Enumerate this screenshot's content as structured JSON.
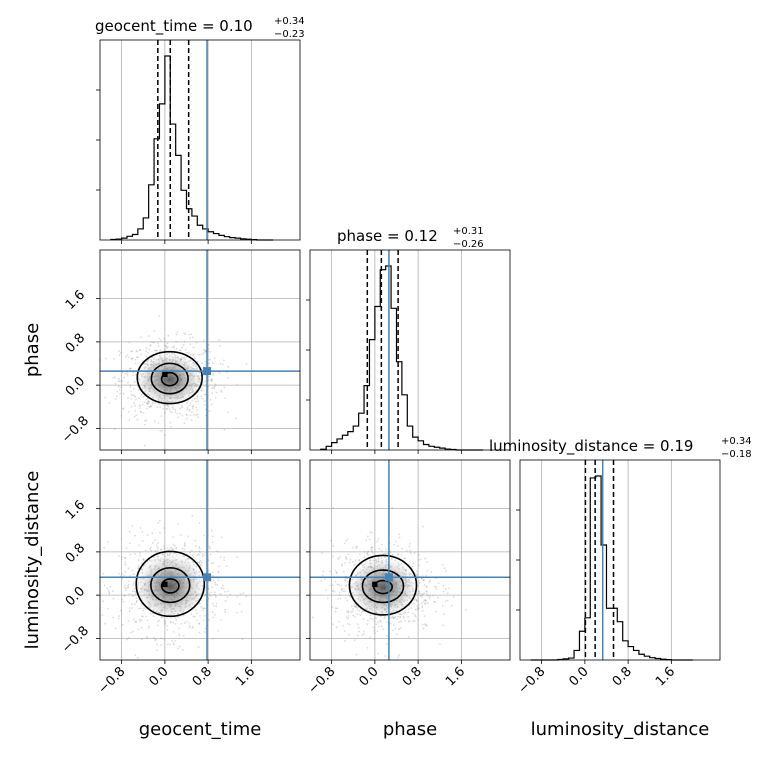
{
  "chart_data": {
    "type": "corner",
    "parameters": [
      {
        "name": "geocent_time",
        "title": {
          "prefix": "geocent_time = ",
          "median": "0.10",
          "plus": "+0.34",
          "minus": "−0.23"
        },
        "truth": 0.78,
        "quantiles": [
          -0.13,
          0.1,
          0.44
        ],
        "hist_edges": [
          -1.0,
          -0.9,
          -0.8,
          -0.7,
          -0.6,
          -0.5,
          -0.4,
          -0.3,
          -0.2,
          -0.1,
          0.0,
          0.1,
          0.2,
          0.3,
          0.4,
          0.5,
          0.6,
          0.7,
          0.8,
          0.9,
          1.0,
          1.1,
          1.2,
          1.3,
          1.4,
          1.5,
          1.6,
          1.7,
          1.8,
          1.9,
          2.0
        ],
        "hist_values": [
          0.003,
          0.005,
          0.01,
          0.02,
          0.03,
          0.06,
          0.12,
          0.3,
          0.55,
          0.74,
          1.0,
          0.63,
          0.46,
          0.27,
          0.17,
          0.13,
          0.08,
          0.06,
          0.045,
          0.035,
          0.025,
          0.018,
          0.013,
          0.01,
          0.006,
          0.004,
          0.002,
          0.0,
          0.0,
          0.0
        ]
      },
      {
        "name": "phase",
        "title": {
          "prefix": "phase = ",
          "median": "0.12",
          "plus": "+0.31",
          "minus": "−0.26"
        },
        "truth": 0.26,
        "quantiles": [
          -0.14,
          0.12,
          0.43
        ],
        "hist_edges": [
          -1.0,
          -0.9,
          -0.8,
          -0.7,
          -0.6,
          -0.5,
          -0.4,
          -0.3,
          -0.2,
          -0.1,
          0.0,
          0.1,
          0.2,
          0.3,
          0.4,
          0.5,
          0.6,
          0.7,
          0.8,
          0.9,
          1.0,
          1.1,
          1.2,
          1.3,
          1.4,
          1.5,
          1.6,
          1.7,
          1.8,
          1.9,
          2.0
        ],
        "hist_values": [
          0.004,
          0.02,
          0.04,
          0.06,
          0.08,
          0.1,
          0.13,
          0.2,
          0.35,
          0.6,
          0.78,
          0.98,
          1.0,
          0.77,
          0.48,
          0.3,
          0.13,
          0.07,
          0.05,
          0.03,
          0.02,
          0.015,
          0.01,
          0.005,
          0.003,
          0.0,
          0.0,
          0.0,
          0.0,
          0.0
        ]
      },
      {
        "name": "luminosity_distance",
        "title": {
          "prefix": "luminosity_distance = ",
          "median": "0.19",
          "plus": "+0.34",
          "minus": "−0.18"
        },
        "truth": 0.33,
        "quantiles": [
          0.01,
          0.19,
          0.53
        ],
        "hist_edges": [
          -1.0,
          -0.9,
          -0.8,
          -0.7,
          -0.6,
          -0.5,
          -0.4,
          -0.3,
          -0.2,
          -0.1,
          0.0,
          0.1,
          0.2,
          0.3,
          0.4,
          0.5,
          0.6,
          0.7,
          0.8,
          0.9,
          1.0,
          1.1,
          1.2,
          1.3,
          1.4,
          1.5,
          1.6,
          1.7,
          1.8,
          1.9,
          2.0
        ],
        "hist_values": [
          0.0,
          0.0,
          0.0,
          0.0,
          0.0,
          0.003,
          0.006,
          0.01,
          0.05,
          0.15,
          0.22,
          0.95,
          0.96,
          0.6,
          0.27,
          0.27,
          0.2,
          0.1,
          0.07,
          0.05,
          0.03,
          0.02,
          0.012,
          0.008,
          0.004,
          0.002,
          0.0,
          0.0,
          0.0,
          0.0
        ]
      }
    ],
    "xlim": [
      -1.2,
      2.5
    ],
    "ylim": [
      -1.2,
      2.5
    ],
    "ticks": [
      -0.8,
      0.0,
      0.8,
      1.6
    ],
    "tick_labels": [
      "−0.8",
      "0.0",
      "0.8",
      "1.6"
    ],
    "grid": true,
    "truth_color": "#4682b4",
    "contour_color": "#000000",
    "scatter_color": "#999999",
    "pairs": [
      {
        "x": "geocent_time",
        "y": "phase",
        "center": [
          0.09,
          0.1
        ],
        "contour_radii": [
          [
            0.15,
            0.12
          ],
          [
            0.34,
            0.28
          ],
          [
            0.6,
            0.48
          ]
        ],
        "core": [
          [
            -0.05,
            0.05
          ],
          [
            0.15,
            0.25
          ]
        ]
      },
      {
        "x": "geocent_time",
        "y": "luminosity_distance",
        "center": [
          0.1,
          0.16
        ],
        "contour_radii": [
          [
            0.16,
            0.13
          ],
          [
            0.36,
            0.32
          ],
          [
            0.63,
            0.6
          ]
        ],
        "core": [
          [
            -0.05,
            0.05
          ],
          [
            0.15,
            0.25
          ]
        ]
      },
      {
        "x": "phase",
        "y": "luminosity_distance",
        "center": [
          0.15,
          0.14
        ],
        "contour_radii": [
          [
            0.17,
            0.12
          ],
          [
            0.38,
            0.3
          ],
          [
            0.62,
            0.55
          ]
        ],
        "core": [
          [
            -0.05,
            0.05
          ],
          [
            0.15,
            0.25
          ]
        ]
      }
    ]
  }
}
